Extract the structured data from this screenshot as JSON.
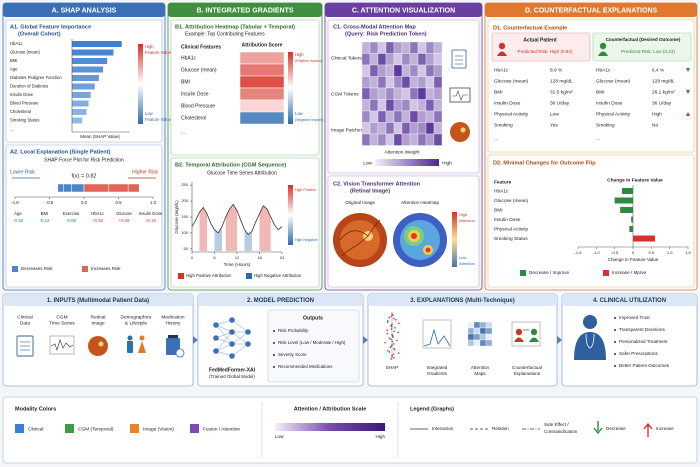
{
  "panel_a": {
    "title": "A. SHAP ANALYSIS",
    "a1": {
      "title": "A1. Global Feature Importance",
      "subtitle": "(Overall Cohort)",
      "features": [
        "HbA1c",
        "Glucose (mean)",
        "BMI",
        "Age",
        "Diabetes Pedigree Function",
        "Duration of Diabetes",
        "Insulin Dose",
        "Blood Pressure",
        "Cholesterol",
        "Smoking Status"
      ],
      "values": [
        0.12,
        0.1,
        0.085,
        0.075,
        0.065,
        0.055,
        0.045,
        0.04,
        0.035,
        0.025
      ],
      "more": "...",
      "color": "#3f7fd0",
      "xlim": [
        0,
        0.14
      ],
      "xlabel": "Mean |SHAP Value|",
      "colorbar_high": "High",
      "colorbar_low": "Low",
      "colorbar_text": "Feature Value"
    },
    "a2": {
      "title": "A2. Local Explanation (Single Patient)",
      "subtitle": "SHAP Force Plot for Risk Prediction",
      "lower": "Lower Risk",
      "higher": "Higher Risk",
      "fx": "f(x) = 0.82",
      "xlim": [
        -1,
        1
      ],
      "xticks": [
        {
          "value": -1,
          "label": "-1.0"
        },
        -0.5,
        {
          "value": 0,
          "label": "0.0"
        },
        0.5,
        {
          "value": 1,
          "label": "1.0"
        }
      ],
      "features": [
        "Age",
        "BMI",
        "Exercise",
        "HbA1c",
        "Glucose",
        "Insulin Dose"
      ],
      "values": [
        -0.18,
        -0.12,
        -0.08,
        0.36,
        0.28,
        0.16
      ],
      "value_labels": [
        "-0.18",
        "-0.12",
        "-0.08",
        "+0.36",
        "+0.28",
        "+0.16"
      ],
      "legend": [
        "Decreases Risk",
        "Increases Risk"
      ]
    }
  },
  "panel_b": {
    "title": "B. INTEGRATED GRADIENTS",
    "b1": {
      "title": "B1. Attribution Heatmap (Tabular + Temporal)",
      "subtitle": "Example: Top Contributing Features",
      "col_feature": "Clinical Features",
      "col_score": "Attribution Score",
      "features": [
        "HbA1c",
        "Glucose (mean)",
        "BMI",
        "Insulin Dose",
        "Blood Pressure",
        "Cholesterol"
      ],
      "values": [
        0.45,
        0.65,
        0.85,
        0.6,
        0.2,
        -0.8
      ],
      "more": "...",
      "high": "High",
      "high_sub": "(Positive Impact)",
      "low": "Low",
      "low_sub": "(Negative Impact)"
    },
    "b2": {
      "title": "B2. Temporal Attribution (CGM Sequence)",
      "subtitle": "Glucose Time Series Attribution",
      "ylabel": "Glucose (mg/dL)",
      "xlabel": "Time (Hours)",
      "x": [
        0,
        1,
        2,
        3,
        4,
        5,
        6,
        7,
        8,
        9,
        10,
        11,
        12,
        13,
        14,
        15,
        16,
        17,
        18,
        19,
        20,
        21,
        22,
        23,
        24
      ],
      "values": [
        120,
        140,
        165,
        180,
        160,
        130,
        110,
        100,
        120,
        150,
        175,
        190,
        170,
        140,
        110,
        95,
        105,
        135,
        160,
        185,
        175,
        150,
        125,
        110,
        120
      ],
      "xlim": [
        0,
        24
      ],
      "xticks": [
        0,
        6,
        12,
        18,
        24
      ],
      "ylim": [
        40,
        260
      ],
      "yticks": [
        50,
        100,
        150,
        200,
        250
      ],
      "line_color": "#333333",
      "high_threshold": 160,
      "low_threshold": 110,
      "legend": [
        "High Positive Attribution",
        "High Negative Attribution"
      ],
      "colorbar_high": "High Positive",
      "colorbar_low": "High Negative"
    }
  },
  "panel_c": {
    "title": "C. ATTENTION VISUALIZATION",
    "c1": {
      "title": "C1. Cross-Modal Attention Map",
      "subtitle": "(Query: Risk Prediction Token)",
      "rows": [
        "Clinical Tokens",
        "CGM Tokens",
        "Image Patches"
      ],
      "matrix": [
        [
          0.3,
          0.5,
          0.2,
          0.7,
          0.4,
          0.3,
          0.6,
          0.2,
          0.5,
          0.3
        ],
        [
          0.6,
          0.3,
          0.8,
          0.4,
          0.2,
          0.5,
          0.3,
          0.7,
          0.4,
          0.2
        ],
        [
          0.2,
          0.7,
          0.4,
          0.3,
          0.9,
          0.3,
          0.5,
          0.2,
          0.6,
          0.4
        ],
        [
          0.4,
          0.3,
          0.6,
          0.2,
          0.5,
          0.8,
          0.3,
          0.4,
          0.2,
          0.7
        ],
        [
          0.7,
          0.4,
          0.3,
          0.5,
          0.3,
          0.2,
          0.6,
          0.9,
          0.3,
          0.4
        ],
        [
          0.3,
          0.6,
          0.2,
          0.8,
          0.4,
          0.5,
          0.2,
          0.3,
          0.7,
          0.3
        ],
        [
          0.5,
          0.2,
          0.7,
          0.3,
          0.6,
          0.3,
          0.8,
          0.4,
          0.3,
          0.6
        ],
        [
          0.2,
          0.4,
          0.3,
          0.6,
          0.2,
          0.7,
          0.4,
          0.5,
          0.9,
          0.3
        ],
        [
          0.6,
          0.3,
          0.5,
          0.2,
          0.8,
          0.4,
          0.3,
          0.6,
          0.4,
          0.8
        ]
      ],
      "xlabel": "Attention Weight",
      "low": "Low",
      "high": "High"
    },
    "c2": {
      "title": "C2. Vision Transformer Attention",
      "subtitle": "(Retinal Image)",
      "original": "Original Image",
      "heatmap": "Attention Heatmap",
      "high": "High",
      "low": "Low",
      "attention": "Attention"
    }
  },
  "panel_d": {
    "title": "D. COUNTERFACTUAL EXPLANATIONS",
    "d1": {
      "title": "D1. Counterfactual Example",
      "actual_title": "Actual Patient",
      "actual_risk": "Predicted Risk: High (0.82)",
      "cf_title": "Counterfactual (Desired Outcome)",
      "cf_risk": "Predicted Risk: Low (0.23)",
      "rows": [
        {
          "feature": "HbA1c",
          "actual": "8.9 %",
          "counterfactual": "6.4 %"
        },
        {
          "feature": "Glucose (mean)",
          "actual": "128 mg/dL",
          "counterfactual": "128 mg/dL"
        },
        {
          "feature": "BMI",
          "actual": "31.5 kg/m²",
          "counterfactual": "26.1 kg/m²"
        },
        {
          "feature": "Insulin Dose",
          "actual": "36 U/day",
          "counterfactual": "36 U/day"
        },
        {
          "feature": "Physical Activity",
          "actual": "Low",
          "counterfactual": "High"
        },
        {
          "feature": "Smoking",
          "actual": "Yes",
          "counterfactual": "No"
        }
      ],
      "more": "..."
    },
    "d2": {
      "title": "D2. Minimal Changes for Outcome Flip",
      "col_feature": "Feature",
      "col_change": "Change in Feature Value",
      "features": [
        "HbA1c",
        "Glucose (mean)",
        "BMI",
        "Insulin Dose",
        "Physical Activity",
        "Smoking Status"
      ],
      "values": [
        -0.3,
        -0.5,
        -0.35,
        -0.05,
        -0.1,
        0.6
      ],
      "xlim": [
        -1.5,
        1.5
      ],
      "xticks": [
        -1.5,
        {
          "value": -1,
          "label": "-1.0"
        },
        -0.5,
        0,
        0.5,
        {
          "value": 1,
          "label": "1.0"
        },
        1.5
      ],
      "xlabel": "Change in Feature Value",
      "legend": [
        "Decrease / Improve",
        "Increase / Mprve"
      ],
      "colors": [
        "#2e8b3e",
        "#d93030"
      ]
    }
  },
  "inputs": {
    "title": "1. INPUTS (Multimodal Patient Data)",
    "items": [
      [
        "Clinical",
        "Data"
      ],
      [
        "CGM",
        "Time Series"
      ],
      [
        "Retinal",
        "Image"
      ],
      [
        "Demographics",
        "& Lifestyle"
      ],
      [
        "Medication",
        "History"
      ]
    ]
  },
  "model": {
    "title": "2. MODEL PREDICTION",
    "name": "FedMedFormer-XAI",
    "sub": "(Trained Global Model)",
    "outputs_title": "Outputs",
    "outputs": [
      "Risk Probability",
      "Risk Level (Low / Moderate / High)",
      "Severity Score",
      "Recommended Medications"
    ]
  },
  "explanations": {
    "title": "3. EXPLANATIONS (Multi-Technique)",
    "items": [
      [
        "SHAP"
      ],
      [
        "Integrated",
        "Gradients"
      ],
      [
        "Attention",
        "Maps"
      ],
      [
        "Counterfactual",
        "Explanations"
      ]
    ]
  },
  "utilization": {
    "title": "4. CLINICAL UTILIZATION",
    "items": [
      "Improved Trust",
      "Transparent Decisions",
      "Personalized Treatment",
      "Safer Prescriptions",
      "Better Patient Outcomes"
    ]
  },
  "legend": {
    "modality_title": "Modality Colors",
    "modalities": [
      {
        "name": "Clinical",
        "color": "#3f7fd0"
      },
      {
        "name": "CGM (Temporal)",
        "color": "#3f9a45"
      },
      {
        "name": "Image (Vision)",
        "color": "#e8822c"
      },
      {
        "name": "Fusion / Attention",
        "color": "#7a4bb0"
      }
    ],
    "scale_title": "Attention / Attribution Scale",
    "scale_low": "Low",
    "scale_high": "High",
    "graph_title": "Legend (Graphs)",
    "interaction": "Interaction",
    "relation": "Relation",
    "side_effect": [
      "Side Effect /",
      "Contraindication"
    ],
    "decrease": "Decrease",
    "increase": "Increase"
  }
}
